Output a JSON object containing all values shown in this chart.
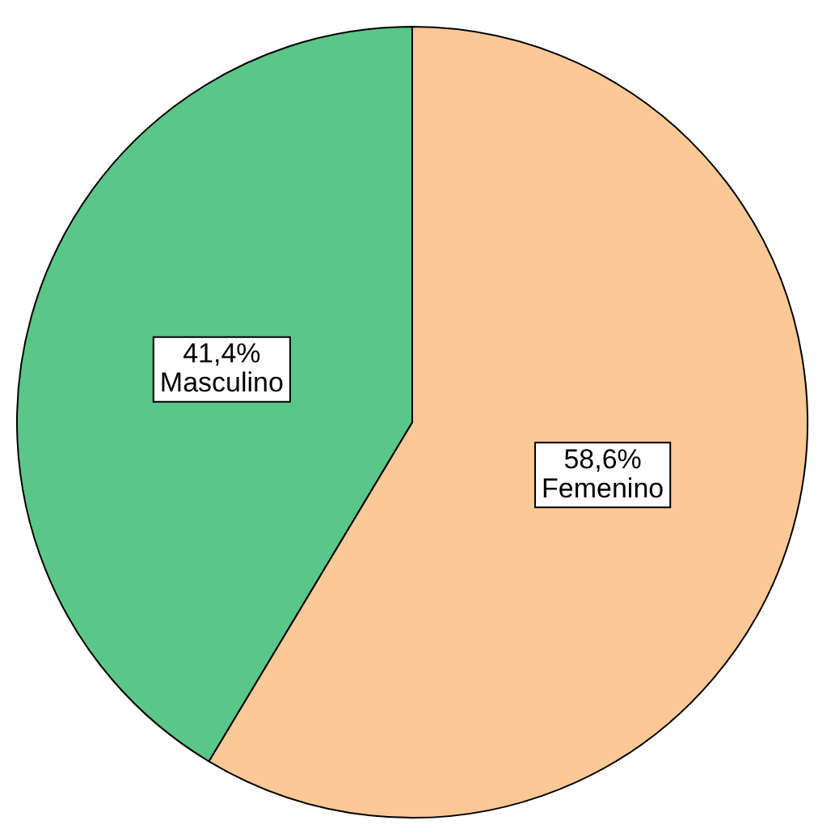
{
  "chart_data": {
    "type": "pie",
    "categories": [
      "Femenino",
      "Masculino"
    ],
    "values": [
      58.6,
      41.4
    ],
    "colors": [
      "#fcc896",
      "#5ac687"
    ],
    "value_labels": [
      "58,6%",
      "41,4%"
    ],
    "legend": false
  }
}
